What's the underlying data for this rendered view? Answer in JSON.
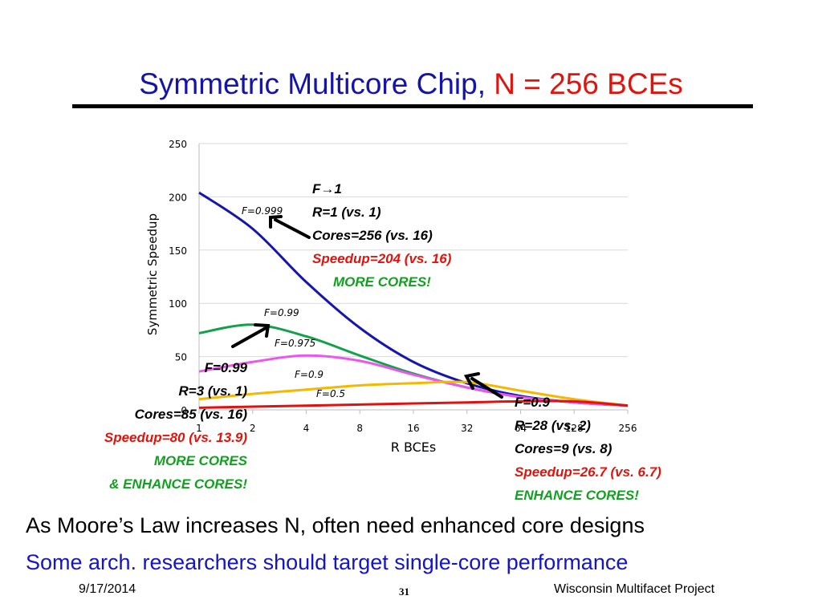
{
  "slide": {
    "title_main": "Symmetric Multicore Chip, ",
    "title_highlight": "N = 256 BCEs",
    "bottom_line1": "As Moore’s Law increases N, often need enhanced core designs",
    "bottom_line2": "Some arch. researchers should target single-core performance",
    "footer_date": "9/17/2014",
    "footer_page": "31",
    "footer_org": "Wisconsin Multifacet Project"
  },
  "colors": {
    "title": "#1414a8",
    "accent_red": "#e3120b",
    "accent_green": "#12a020",
    "F_0_999": "#1515b0",
    "F_0_99": "#12a04a",
    "F_0_975": "#ee55ee",
    "F_0_9": "#f5b800",
    "F_0_5": "#e31010"
  },
  "chart_data": {
    "type": "line",
    "xlabel": "R BCEs",
    "ylabel": "Symmetric Speedup",
    "x": [
      1,
      2,
      4,
      8,
      16,
      32,
      64,
      128,
      256
    ],
    "x_ticks": [
      "1",
      "2",
      "4",
      "8",
      "16",
      "32",
      "64",
      "128",
      "256"
    ],
    "x_scale": "log2",
    "ylim": [
      0,
      250
    ],
    "y_ticks": [
      "0",
      "50",
      "100",
      "150",
      "200",
      "250"
    ],
    "grid": true,
    "series": [
      {
        "name": "F=0.999",
        "values": [
          204,
          170,
          120,
          77,
          45,
          25,
          13,
          7,
          4
        ],
        "color": "#1515b0"
      },
      {
        "name": "F=0.99",
        "values": [
          72,
          80,
          69,
          51,
          34,
          21,
          12,
          7,
          4
        ],
        "color": "#12a04a"
      },
      {
        "name": "F=0.975",
        "values": [
          36,
          45,
          51,
          46,
          33,
          21,
          12,
          7,
          4
        ],
        "color": "#ee55ee"
      },
      {
        "name": "F=0.9",
        "values": [
          10,
          15,
          19,
          23,
          25,
          26,
          18,
          10,
          4
        ],
        "color": "#f5b800"
      },
      {
        "name": "F=0.5",
        "values": [
          2,
          3,
          4,
          5,
          6,
          7,
          8,
          8,
          4
        ],
        "color": "#e31010"
      }
    ]
  },
  "annotations": {
    "top": {
      "l1": "F→1",
      "l2": "R=1 (vs. 1)",
      "l3": "Cores=256 (vs. 16)",
      "l4": "Speedup=204 (vs. 16)",
      "l5": "MORE CORES!"
    },
    "left": {
      "l1": "F=0.99",
      "l2": "R=3 (vs. 1)",
      "l3": "Cores=85 (vs. 16)",
      "l4": "Speedup=80 (vs. 13.9)",
      "l5": "MORE CORES",
      "l6": "& ENHANCE CORES!"
    },
    "right": {
      "l1": "F=0.9",
      "l2": "R=28 (vs. 2)",
      "l3": "Cores=9 (vs. 8)",
      "l4": "Speedup=26.7 (vs. 6.7)",
      "l5": "ENHANCE CORES!"
    }
  }
}
